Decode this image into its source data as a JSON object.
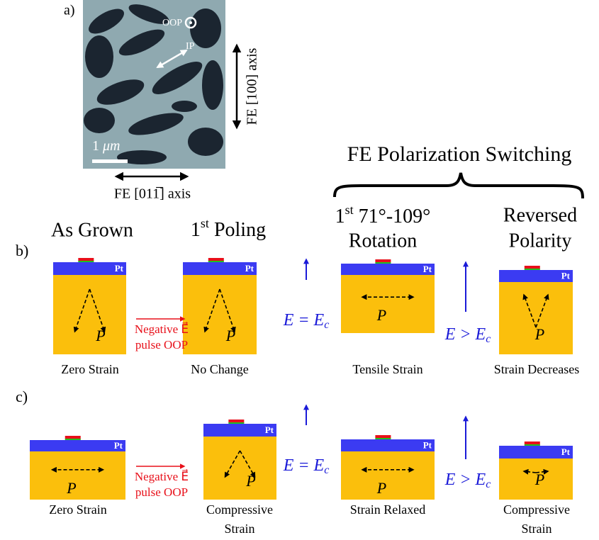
{
  "panel_a": {
    "label": "a)",
    "oop": "OOP",
    "ip": "IP",
    "scale_bar": {
      "number": "1",
      "unit": "μm"
    },
    "vertical_axis": "FE [100] axis",
    "horizontal_axis": "FE [011̅] axis"
  },
  "switching_title": "FE Polarization Switching",
  "headers": [
    {
      "text": "As Grown"
    },
    {
      "base": "1",
      "sup": "st",
      "rest": " Poling"
    },
    {
      "base": "1",
      "sup": "st",
      "rest": " 71°-109°",
      "line2": "Rotation"
    },
    {
      "line1": "Reversed",
      "line2": "Polarity"
    }
  ],
  "pt_label": "Pt",
  "polarization_symbol": "P⃗",
  "pulse_label": {
    "line1": "Negative E⃗",
    "line2": "pulse OOP"
  },
  "field_labels": [
    {
      "text": "E = E",
      "sub": "c"
    },
    {
      "text": "E > E",
      "sub": "c"
    }
  ],
  "panel_b": {
    "label": "b)",
    "captions": [
      [
        "Zero Strain"
      ],
      [
        "No Change"
      ],
      [
        "Tensile Strain"
      ],
      [
        "Strain Decreases"
      ]
    ]
  },
  "panel_c": {
    "label": "c)",
    "captions": [
      [
        "Zero Strain"
      ],
      [
        "Compressive",
        "Strain"
      ],
      [
        "Strain Relaxed"
      ],
      [
        "Compressive",
        "Strain"
      ]
    ]
  }
}
